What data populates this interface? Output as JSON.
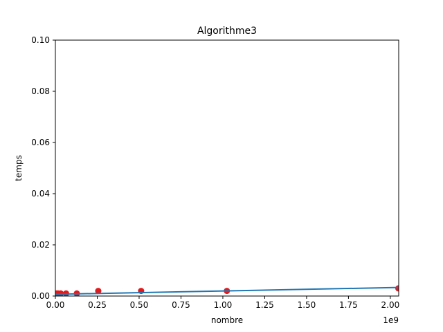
{
  "chart_data": {
    "type": "scatter",
    "title": "Algorithme3",
    "xlabel": "nombre",
    "ylabel": "temps",
    "x_offset_label": "1e9",
    "xlim": [
      0,
      2.05
    ],
    "ylim": [
      0,
      0.1
    ],
    "x_ticks": [
      0.0,
      0.25,
      0.5,
      0.75,
      1.0,
      1.25,
      1.5,
      1.75,
      2.0
    ],
    "x_tick_labels": [
      "0.00",
      "0.25",
      "0.50",
      "0.75",
      "1.00",
      "1.25",
      "1.50",
      "1.75",
      "2.00"
    ],
    "y_ticks": [
      0.0,
      0.02,
      0.04,
      0.06,
      0.08,
      0.1
    ],
    "y_tick_labels": [
      "0.00",
      "0.02",
      "0.04",
      "0.06",
      "0.08",
      "0.10"
    ],
    "grid": false,
    "series": [
      {
        "kind": "scatter",
        "color": "#e31a1c",
        "x": [
          0.008,
          0.016,
          0.032,
          0.064,
          0.128,
          0.256,
          0.512,
          1.024,
          2.048
        ],
        "y": [
          0.001,
          0.001,
          0.001,
          0.001,
          0.001,
          0.002,
          0.002,
          0.002,
          0.003
        ]
      },
      {
        "kind": "line",
        "color": "#1f77b4",
        "x": [
          0.0,
          2.048
        ],
        "y": [
          0.00067,
          0.00335
        ]
      }
    ]
  }
}
